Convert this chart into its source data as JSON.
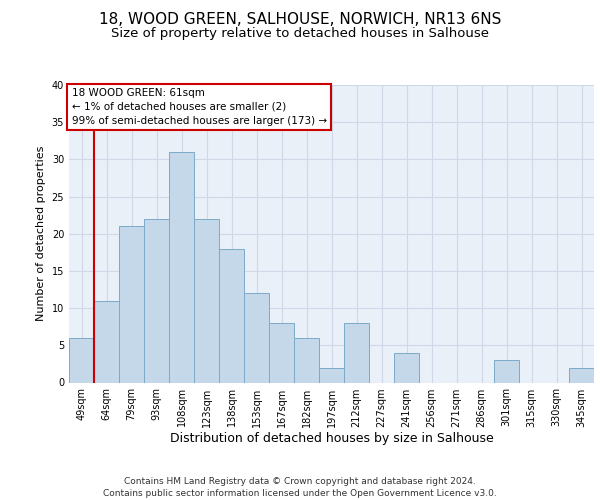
{
  "title1": "18, WOOD GREEN, SALHOUSE, NORWICH, NR13 6NS",
  "title2": "Size of property relative to detached houses in Salhouse",
  "xlabel": "Distribution of detached houses by size in Salhouse",
  "ylabel": "Number of detached properties",
  "footer1": "Contains HM Land Registry data © Crown copyright and database right 2024.",
  "footer2": "Contains public sector information licensed under the Open Government Licence v3.0.",
  "categories": [
    "49sqm",
    "64sqm",
    "79sqm",
    "93sqm",
    "108sqm",
    "123sqm",
    "138sqm",
    "153sqm",
    "167sqm",
    "182sqm",
    "197sqm",
    "212sqm",
    "227sqm",
    "241sqm",
    "256sqm",
    "271sqm",
    "286sqm",
    "301sqm",
    "315sqm",
    "330sqm",
    "345sqm"
  ],
  "values": [
    6,
    11,
    21,
    22,
    31,
    22,
    18,
    12,
    8,
    6,
    2,
    8,
    0,
    4,
    0,
    0,
    0,
    3,
    0,
    0,
    2
  ],
  "bar_color": "#c5d8ea",
  "bar_edge_color": "#7baac8",
  "annotation_line1": "18 WOOD GREEN: 61sqm",
  "annotation_line2": "← 1% of detached houses are smaller (2)",
  "annotation_line3": "99% of semi-detached houses are larger (173) →",
  "annotation_box_color": "#ffffff",
  "annotation_box_edge_color": "#cc0000",
  "vline_color": "#cc0000",
  "vline_x": 0.5,
  "ylim": [
    0,
    40
  ],
  "yticks": [
    0,
    5,
    10,
    15,
    20,
    25,
    30,
    35,
    40
  ],
  "grid_color": "#d0d8e8",
  "bg_color": "#eaf0f8",
  "title1_fontsize": 11,
  "title2_fontsize": 9.5,
  "xlabel_fontsize": 9,
  "ylabel_fontsize": 8,
  "tick_fontsize": 7,
  "annotation_fontsize": 7.5,
  "footer_fontsize": 6.5
}
